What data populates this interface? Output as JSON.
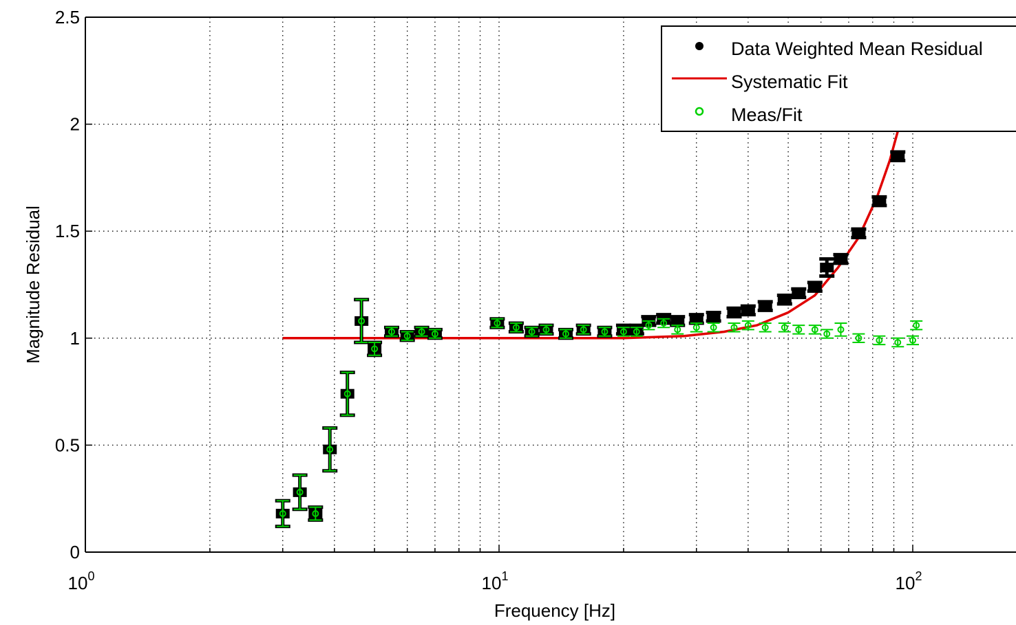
{
  "chart_data": {
    "type": "scatter",
    "title": "",
    "xlabel": "Frequency [Hz]",
    "ylabel": "Magnitude Residual",
    "xscale": "log",
    "xlim": [
      1,
      220
    ],
    "ylim": [
      0,
      2.5
    ],
    "grid": true,
    "legend_position": "top-right",
    "x_tick_labels": [
      {
        "value": 1,
        "base": "10",
        "exp": "0"
      },
      {
        "value": 10,
        "base": "10",
        "exp": "1"
      },
      {
        "value": 100,
        "base": "10",
        "exp": "2"
      }
    ],
    "y_ticks": [
      {
        "value": 0,
        "label": "0"
      },
      {
        "value": 0.5,
        "label": "0.5"
      },
      {
        "value": 1,
        "label": "1"
      },
      {
        "value": 1.5,
        "label": "1.5"
      },
      {
        "value": 2,
        "label": "2"
      },
      {
        "value": 2.5,
        "label": "2.5"
      }
    ],
    "colors": {
      "data": "#000000",
      "fit": "#e00000",
      "meas": "#00d000"
    },
    "series": [
      {
        "name": "Data Weighted Mean Residual",
        "marker": "square",
        "points": [
          [
            3.0,
            0.18,
            0.06
          ],
          [
            3.3,
            0.28,
            0.08
          ],
          [
            3.6,
            0.18,
            0.03
          ],
          [
            3.9,
            0.48,
            0.1
          ],
          [
            4.3,
            0.74,
            0.1
          ],
          [
            4.65,
            1.08,
            0.1
          ],
          [
            5.0,
            0.95,
            0.03
          ],
          [
            5.5,
            1.03,
            0.02
          ],
          [
            6.0,
            1.01,
            0.02
          ],
          [
            6.5,
            1.03,
            0.02
          ],
          [
            7.0,
            1.02,
            0.02
          ],
          [
            9.9,
            1.07,
            0.02
          ],
          [
            11,
            1.05,
            0.02
          ],
          [
            12,
            1.03,
            0.02
          ],
          [
            13,
            1.04,
            0.02
          ],
          [
            14.5,
            1.02,
            0.02
          ],
          [
            16,
            1.04,
            0.02
          ],
          [
            18,
            1.03,
            0.02
          ],
          [
            20,
            1.04,
            0.02
          ],
          [
            21.5,
            1.04,
            0.02
          ],
          [
            23,
            1.08,
            0.02
          ],
          [
            25,
            1.09,
            0.02
          ],
          [
            27,
            1.08,
            0.02
          ],
          [
            30,
            1.09,
            0.02
          ],
          [
            33,
            1.1,
            0.02
          ],
          [
            37,
            1.12,
            0.02
          ],
          [
            40,
            1.13,
            0.02
          ],
          [
            44,
            1.15,
            0.02
          ],
          [
            49,
            1.18,
            0.02
          ],
          [
            53,
            1.21,
            0.02
          ],
          [
            58,
            1.24,
            0.02
          ],
          [
            62,
            1.33,
            0.04
          ],
          [
            67,
            1.37,
            0.02
          ],
          [
            74,
            1.49,
            0.02
          ],
          [
            83,
            1.64,
            0.02
          ],
          [
            92,
            1.85,
            0.02
          ]
        ]
      },
      {
        "name": "Systematic Fit",
        "x": [
          3,
          10,
          20,
          28,
          35,
          42,
          50,
          58,
          66,
          74,
          82,
          88,
          93,
          97,
          100
        ],
        "y": [
          1.0,
          1.0,
          1.0,
          1.01,
          1.03,
          1.06,
          1.12,
          1.2,
          1.33,
          1.47,
          1.66,
          1.83,
          2.0,
          2.15,
          2.32
        ]
      },
      {
        "name": "Meas/Fit",
        "marker": "circle",
        "points": [
          [
            3.0,
            0.18,
            0.06
          ],
          [
            3.3,
            0.28,
            0.08
          ],
          [
            3.6,
            0.18,
            0.03
          ],
          [
            3.9,
            0.48,
            0.1
          ],
          [
            4.3,
            0.74,
            0.1
          ],
          [
            4.65,
            1.08,
            0.1
          ],
          [
            5.0,
            0.95,
            0.03
          ],
          [
            5.5,
            1.03,
            0.02
          ],
          [
            6.0,
            1.01,
            0.02
          ],
          [
            6.5,
            1.03,
            0.02
          ],
          [
            7.0,
            1.02,
            0.02
          ],
          [
            9.9,
            1.07,
            0.02
          ],
          [
            11,
            1.05,
            0.02
          ],
          [
            12,
            1.03,
            0.02
          ],
          [
            13,
            1.04,
            0.02
          ],
          [
            14.5,
            1.02,
            0.02
          ],
          [
            16,
            1.04,
            0.02
          ],
          [
            18,
            1.03,
            0.02
          ],
          [
            20,
            1.03,
            0.02
          ],
          [
            21.5,
            1.03,
            0.02
          ],
          [
            23,
            1.06,
            0.02
          ],
          [
            25,
            1.07,
            0.02
          ],
          [
            27,
            1.04,
            0.02
          ],
          [
            30,
            1.05,
            0.02
          ],
          [
            33,
            1.05,
            0.02
          ],
          [
            37,
            1.05,
            0.02
          ],
          [
            40,
            1.06,
            0.02
          ],
          [
            44,
            1.05,
            0.02
          ],
          [
            49,
            1.05,
            0.02
          ],
          [
            53,
            1.04,
            0.02
          ],
          [
            58,
            1.04,
            0.02
          ],
          [
            62,
            1.02,
            0.02
          ],
          [
            67,
            1.04,
            0.03
          ],
          [
            74,
            1.0,
            0.02
          ],
          [
            83,
            0.99,
            0.02
          ],
          [
            92,
            0.98,
            0.02
          ],
          [
            100,
            0.99,
            0.02
          ],
          [
            102,
            1.06,
            0.02
          ]
        ]
      }
    ]
  }
}
